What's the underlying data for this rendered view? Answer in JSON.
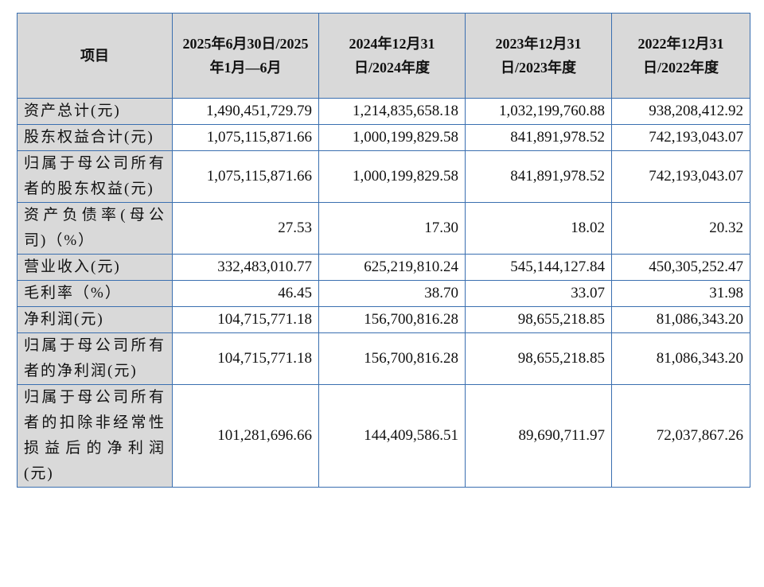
{
  "table": {
    "headers": [
      "项目",
      "2025年6月30日/2025年1月—6月",
      "2024年12月31日/2024年度",
      "2023年12月31日/2023年度",
      "2022年12月31日/2022年度"
    ],
    "rows": [
      {
        "label": "资产总计(元)",
        "values": [
          "1,490,451,729.79",
          "1,214,835,658.18",
          "1,032,199,760.88",
          "938,208,412.92"
        ]
      },
      {
        "label": "股东权益合计(元)",
        "values": [
          "1,075,115,871.66",
          "1,000,199,829.58",
          "841,891,978.52",
          "742,193,043.07"
        ]
      },
      {
        "label": "归属于母公司所有者的股东权益(元)",
        "values": [
          "1,075,115,871.66",
          "1,000,199,829.58",
          "841,891,978.52",
          "742,193,043.07"
        ]
      },
      {
        "label": "资产负债率(母公司)（%）",
        "values": [
          "27.53",
          "17.30",
          "18.02",
          "20.32"
        ]
      },
      {
        "label": "营业收入(元)",
        "values": [
          "332,483,010.77",
          "625,219,810.24",
          "545,144,127.84",
          "450,305,252.47"
        ]
      },
      {
        "label": "毛利率（%）",
        "values": [
          "46.45",
          "38.70",
          "33.07",
          "31.98"
        ]
      },
      {
        "label": "净利润(元)",
        "values": [
          "104,715,771.18",
          "156,700,816.28",
          "98,655,218.85",
          "81,086,343.20"
        ]
      },
      {
        "label": "归属于母公司所有者的净利润(元)",
        "values": [
          "104,715,771.18",
          "156,700,816.28",
          "98,655,218.85",
          "81,086,343.20"
        ]
      },
      {
        "label": "归属于母公司所有者的扣除非经常性损益后的净利润(元)",
        "values": [
          "101,281,696.66",
          "144,409,586.51",
          "89,690,711.97",
          "72,037,867.26"
        ]
      }
    ]
  }
}
